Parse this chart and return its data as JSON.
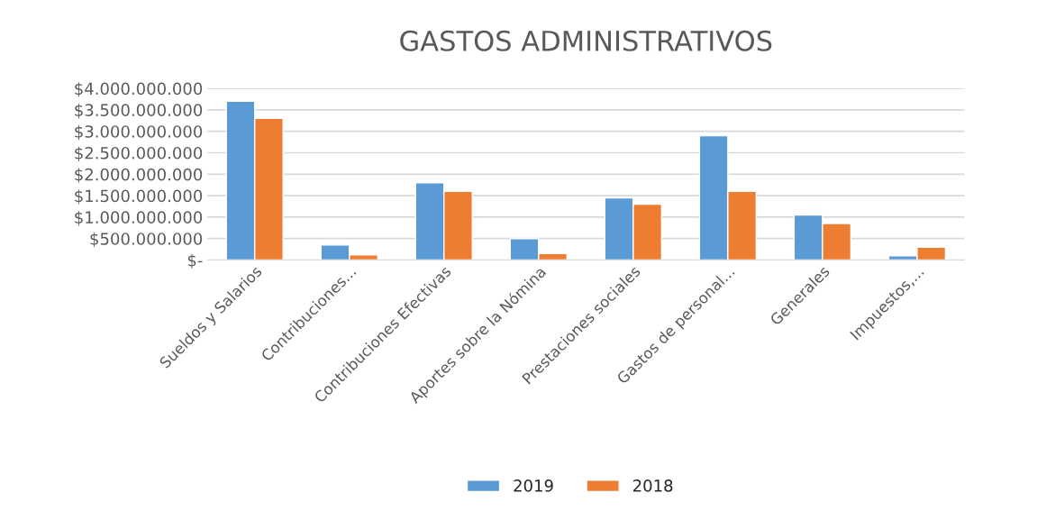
{
  "chart_data": {
    "type": "bar",
    "title": "GASTOS ADMINISTRATIVOS",
    "categories": [
      "Sueldos y Salarios",
      "Contribuciones...",
      "Contribuciones Efectivas",
      "Aportes sobre la Nómina",
      "Prestaciones sociales",
      "Gastos de personal...",
      "Generales",
      "Impuestos,..."
    ],
    "series": [
      {
        "name": "2019",
        "color": "#5b9bd5",
        "values": [
          3700000000,
          350000000,
          1800000000,
          500000000,
          1450000000,
          2900000000,
          1050000000,
          100000000
        ]
      },
      {
        "name": "2018",
        "color": "#ed7d31",
        "values": [
          3300000000,
          120000000,
          1600000000,
          150000000,
          1300000000,
          1600000000,
          850000000,
          300000000
        ]
      }
    ],
    "ylim": [
      0,
      4000000000
    ],
    "yticks": [
      {
        "value": 0,
        "label": "$-"
      },
      {
        "value": 500000000,
        "label": "$500.000.000"
      },
      {
        "value": 1000000000,
        "label": "$1.000.000.000"
      },
      {
        "value": 1500000000,
        "label": "$1.500.000.000"
      },
      {
        "value": 2000000000,
        "label": "$2.000.000.000"
      },
      {
        "value": 2500000000,
        "label": "$2.500.000.000"
      },
      {
        "value": 3000000000,
        "label": "$3.000.000.000"
      },
      {
        "value": 3500000000,
        "label": "$3.500.000.000"
      },
      {
        "value": 4000000000,
        "label": "$4.000.000.000"
      }
    ],
    "grid": "y",
    "legend": "bottom"
  }
}
